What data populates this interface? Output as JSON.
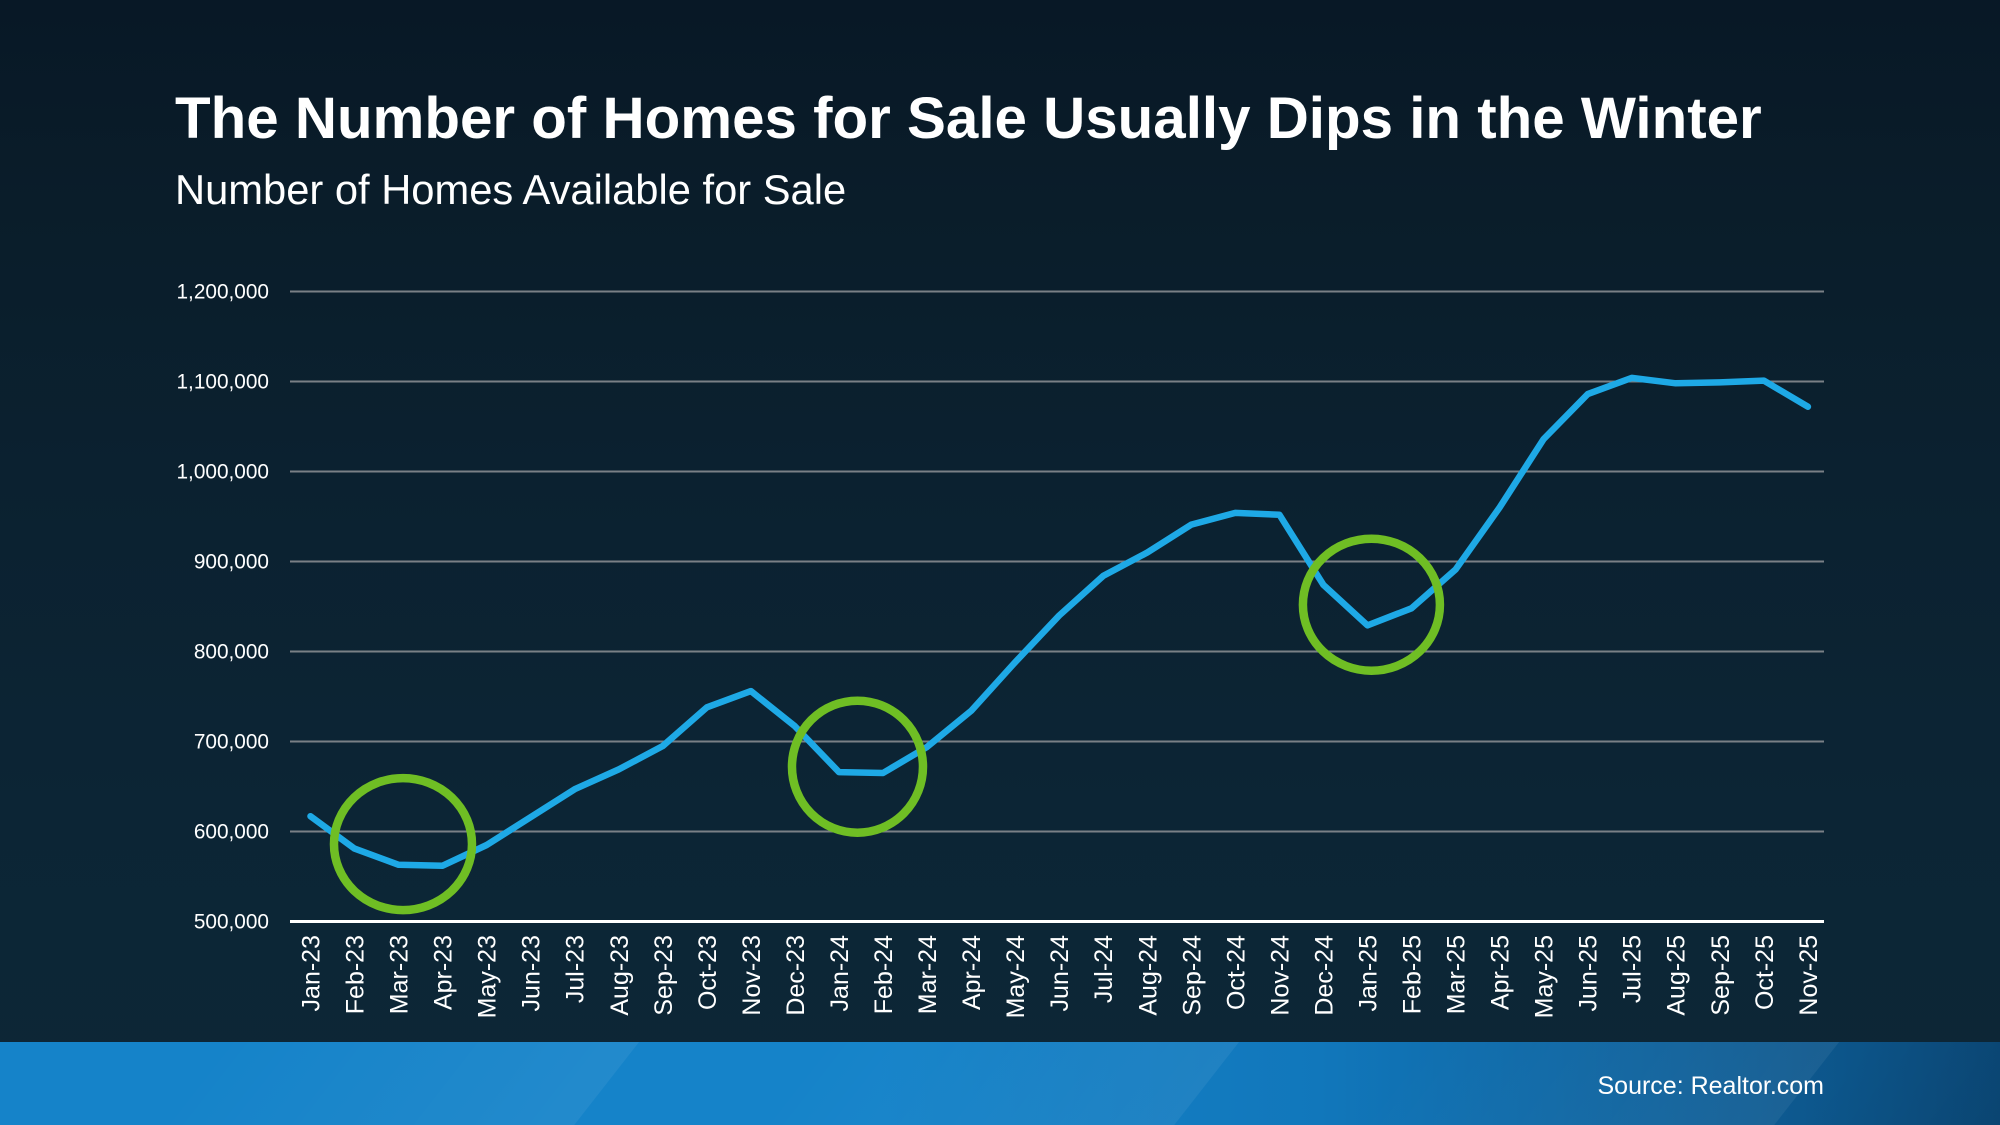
{
  "slide": {
    "title": "The Number of Homes for Sale Usually Dips in the Winter",
    "subtitle": "Number of Homes Available for Sale",
    "source_label": "Source: Realtor.com"
  },
  "colors": {
    "background_top": "#081826",
    "background_bottom": "#0d2737",
    "line": "#1ea9e6",
    "highlight_circle": "#6fbe24",
    "gridline": "#7a8086",
    "axis_line": "#ffffff",
    "text": "#ffffff",
    "footer_bar_left": "#1583c9",
    "footer_bar_right": "#0b4a7a"
  },
  "chart_data": {
    "type": "line",
    "title": "Number of Homes Available for Sale",
    "xlabel": "",
    "ylabel": "",
    "legend_position": "none",
    "grid": "horizontal",
    "ylim": [
      500000,
      1200000
    ],
    "ytick_step": 100000,
    "ytick_labels": [
      "500,000",
      "600,000",
      "700,000",
      "800,000",
      "900,000",
      "1,000,000",
      "1,100,000",
      "1,200,000"
    ],
    "categories": [
      "Jan-23",
      "Feb-23",
      "Mar-23",
      "Apr-23",
      "May-23",
      "Jun-23",
      "Jul-23",
      "Aug-23",
      "Sep-23",
      "Oct-23",
      "Nov-23",
      "Dec-23",
      "Jan-24",
      "Feb-24",
      "Mar-24",
      "Apr-24",
      "May-24",
      "Jun-24",
      "Jul-24",
      "Aug-24",
      "Sep-24",
      "Oct-24",
      "Nov-24",
      "Dec-24",
      "Jan-25",
      "Feb-25",
      "Mar-25",
      "Apr-25",
      "May-25",
      "Jun-25",
      "Jul-25",
      "Aug-25",
      "Sep-25",
      "Oct-25",
      "Nov-25"
    ],
    "series": [
      {
        "name": "Number of Homes Available for Sale",
        "values": [
          617000,
          581000,
          563000,
          562000,
          585000,
          616000,
          647000,
          669000,
          695000,
          738000,
          756000,
          717000,
          666000,
          665000,
          694000,
          734000,
          788000,
          840000,
          884000,
          910000,
          941000,
          954000,
          952000,
          874000,
          829000,
          848000,
          891000,
          960000,
          1036000,
          1086000,
          1104000,
          1098000,
          1099000,
          1101000,
          1072000
        ]
      }
    ],
    "annotations": [
      {
        "type": "circle",
        "label": "winter-dip-2023",
        "month": "Mar-23",
        "month_offset": 0.1,
        "value": 586000,
        "radius_x_px": 69,
        "radius_y_px": 66
      },
      {
        "type": "circle",
        "label": "winter-dip-2024",
        "month": "Jan-24",
        "month_offset": 0.42,
        "value": 672000,
        "radius_x_px": 65.5,
        "radius_y_px": 66
      },
      {
        "type": "circle",
        "label": "winter-dip-2025",
        "month": "Jan-25",
        "month_offset": 0.09,
        "value": 852000,
        "radius_x_px": 68.5,
        "radius_y_px": 66
      }
    ]
  }
}
